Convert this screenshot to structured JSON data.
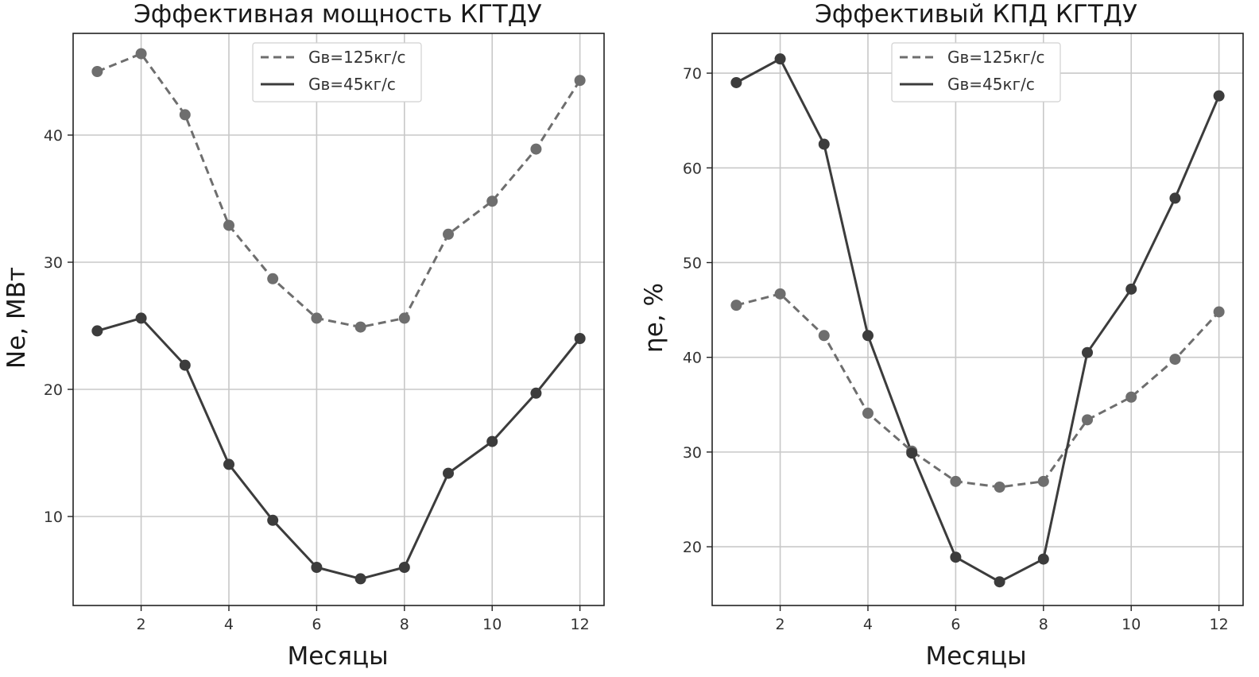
{
  "chart_data": [
    {
      "type": "line",
      "title": "Эффективная мощность КГТДУ",
      "xlabel": "Месяцы",
      "ylabel": "Ne, МВт",
      "xlim": [
        0.45,
        12.55
      ],
      "ylim": [
        3.0,
        48.0
      ],
      "xticks": [
        2,
        4,
        6,
        8,
        10,
        12
      ],
      "yticks": [
        10,
        20,
        30,
        40
      ],
      "grid": true,
      "legend_position": "top-center",
      "x": [
        1,
        2,
        3,
        4,
        5,
        6,
        7,
        8,
        9,
        10,
        11,
        12
      ],
      "series": [
        {
          "name": "Gв=125кг/с",
          "style": "dashed",
          "color": "#6e6e6e",
          "values": [
            45.0,
            46.4,
            41.6,
            32.9,
            28.7,
            25.6,
            24.9,
            25.6,
            32.2,
            34.8,
            38.9,
            44.3
          ]
        },
        {
          "name": "Gв=45кг/с",
          "style": "solid",
          "color": "#3c3c3c",
          "values": [
            24.6,
            25.6,
            21.9,
            14.1,
            9.7,
            6.0,
            5.1,
            6.0,
            13.4,
            15.9,
            19.7,
            24.0
          ]
        }
      ]
    },
    {
      "type": "line",
      "title": "Эффективый КПД КГТДУ",
      "xlabel": "Месяцы",
      "ylabel": "ηе, %",
      "xlim": [
        0.45,
        12.55
      ],
      "ylim": [
        13.8,
        74.2
      ],
      "xticks": [
        2,
        4,
        6,
        8,
        10,
        12
      ],
      "yticks": [
        20,
        30,
        40,
        50,
        60,
        70
      ],
      "grid": true,
      "legend_position": "top-center",
      "x": [
        1,
        2,
        3,
        4,
        5,
        6,
        7,
        8,
        9,
        10,
        11,
        12
      ],
      "series": [
        {
          "name": "Gв=125кг/с",
          "style": "dashed",
          "color": "#6e6e6e",
          "values": [
            45.5,
            46.7,
            42.3,
            34.1,
            30.1,
            26.9,
            26.3,
            26.9,
            33.4,
            35.8,
            39.8,
            44.8
          ]
        },
        {
          "name": "Gв=45кг/с",
          "style": "solid",
          "color": "#3c3c3c",
          "values": [
            69.0,
            71.5,
            62.5,
            42.3,
            29.9,
            18.9,
            16.3,
            18.7,
            40.5,
            47.2,
            56.8,
            67.6
          ]
        }
      ]
    }
  ]
}
